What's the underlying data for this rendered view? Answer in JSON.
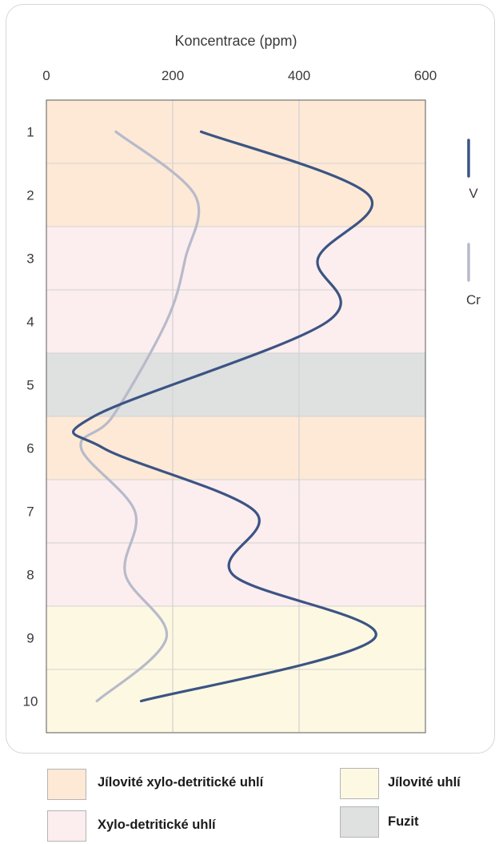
{
  "chart_data": {
    "type": "line",
    "xlabel": "Koncentrace (ppm)",
    "xlim": [
      0,
      600
    ],
    "x_ticks": [
      "0",
      "200",
      "400",
      "600"
    ],
    "ylim": [
      0.5,
      10.5
    ],
    "y_categories": [
      "1",
      "2",
      "3",
      "4",
      "5",
      "6",
      "7",
      "8",
      "9",
      "10"
    ],
    "grid": true,
    "legend_position": "right",
    "series": [
      {
        "name": "V",
        "color": "#3b5483",
        "values": [
          [
            245,
            1
          ],
          [
            510,
            2
          ],
          [
            430,
            3
          ],
          [
            445,
            4
          ],
          [
            75,
            5.5
          ],
          [
            90,
            6
          ],
          [
            330,
            7
          ],
          [
            295,
            8
          ],
          [
            520,
            9
          ],
          [
            150,
            10
          ]
        ]
      },
      {
        "name": "Cr",
        "color": "#b7bac9",
        "values": [
          [
            110,
            1
          ],
          [
            235,
            2
          ],
          [
            220,
            3
          ],
          [
            190,
            4
          ],
          [
            105,
            5.5
          ],
          [
            55,
            6
          ],
          [
            140,
            7
          ],
          [
            125,
            8
          ],
          [
            190,
            9
          ],
          [
            80,
            10
          ]
        ]
      }
    ],
    "zones": [
      {
        "from": 0.5,
        "to": 2.5,
        "category": "jxd"
      },
      {
        "from": 2.5,
        "to": 4.5,
        "category": "xd"
      },
      {
        "from": 4.5,
        "to": 5.5,
        "category": "fuzit"
      },
      {
        "from": 5.5,
        "to": 6.5,
        "category": "jxd"
      },
      {
        "from": 6.5,
        "to": 8.5,
        "category": "xd"
      },
      {
        "from": 8.5,
        "to": 10.5,
        "category": "ju"
      }
    ]
  },
  "zone_legend": [
    {
      "key": "jxd",
      "label": "Jílovité xylo-detritické uhlí",
      "color": "#fde9d6"
    },
    {
      "key": "xd",
      "label": "Xylo-detritické uhlí",
      "color": "#fcedef"
    },
    {
      "key": "ju",
      "label": "Jílovité uhlí",
      "color": "#fdf8e2"
    },
    {
      "key": "fuzit",
      "label": "Fuzit",
      "color": "#dfe0e0"
    }
  ]
}
